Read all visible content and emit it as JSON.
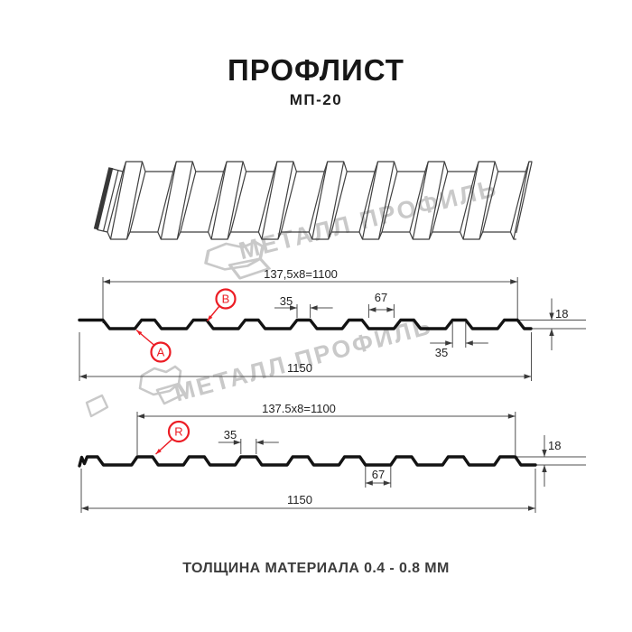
{
  "header": {
    "title": "ПРОФЛИСТ",
    "subtitle": "МП-20"
  },
  "watermark": {
    "brand_text": "МЕТАЛЛ ПРОФИЛЬ"
  },
  "footer": {
    "caption": "ТОЛЩИНА МАТЕРИАЛА 0.4 - 0.8 ММ"
  },
  "colors": {
    "accent_red": "#ec1c24",
    "profile_line": "#131313",
    "dim_line": "#4f4f4f",
    "thin_line": "#3f3f3f",
    "watermark_gray": "#c9c9c9",
    "cut_edge_dark": "#383838"
  },
  "section_front": {
    "pitch_label": "137,5x8=1100",
    "crest_top_label": "35",
    "valley_label": "67",
    "height_label": "18",
    "crest_bottom_label": "35",
    "overall_label": "1150",
    "point_label_valley": "A",
    "point_label_crest": "B"
  },
  "section_back": {
    "pitch_label": "137.5x8=1100",
    "crest_label": "35",
    "valley_label": "67",
    "height_label": "18",
    "overall_label": "1150",
    "point_label_reverse": "R"
  }
}
